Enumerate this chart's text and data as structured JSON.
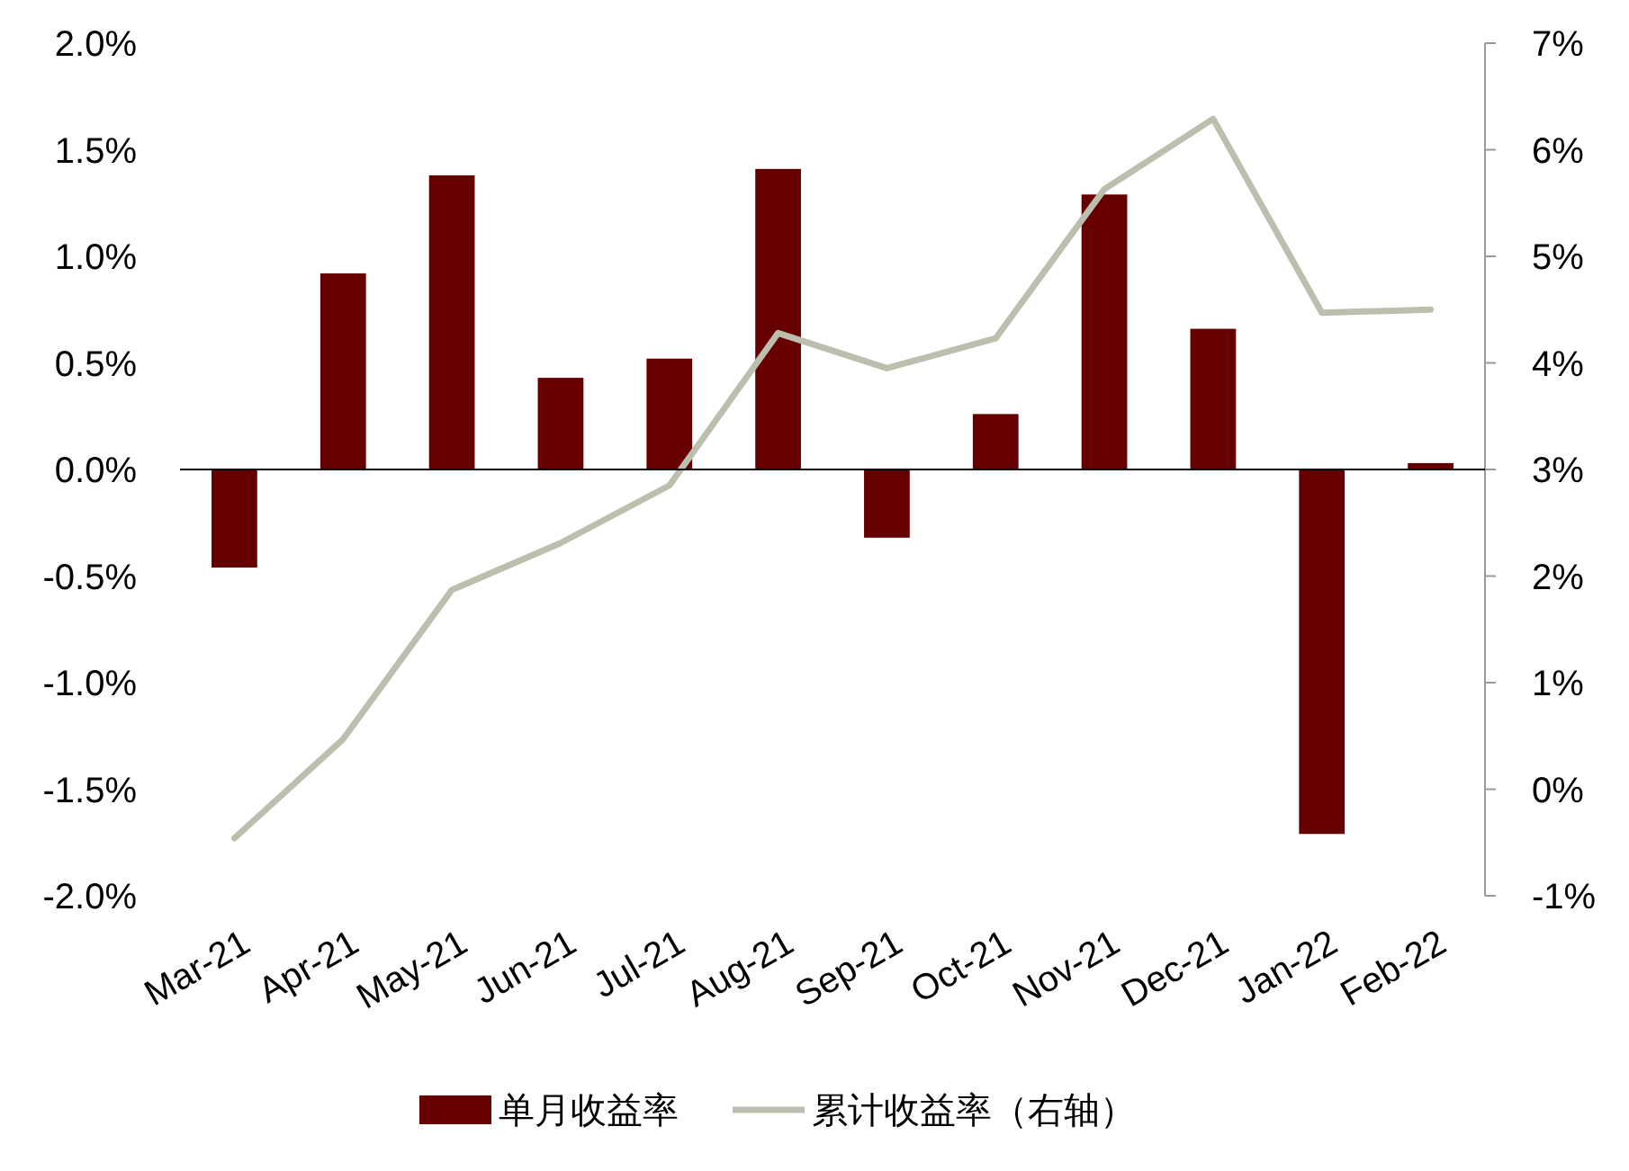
{
  "chart_data": {
    "type": "bar",
    "categories": [
      "Mar-21",
      "Apr-21",
      "May-21",
      "Jun-21",
      "Jul-21",
      "Aug-21",
      "Sep-21",
      "Oct-21",
      "Nov-21",
      "Dec-21",
      "Jan-22",
      "Feb-22"
    ],
    "series": [
      {
        "name": "单月收益率",
        "color": "#660000",
        "values": [
          -0.46,
          0.92,
          1.38,
          0.43,
          0.52,
          1.41,
          -0.32,
          0.26,
          1.29,
          0.66,
          -1.71,
          0.03
        ]
      },
      {
        "name": "累计收益率（右轴）",
        "type": "line",
        "axis": "y2",
        "color": "#bcbfae",
        "values": [
          -0.46,
          0.47,
          1.87,
          2.31,
          2.85,
          4.28,
          3.95,
          4.23,
          5.63,
          6.29,
          4.47,
          4.5
        ]
      }
    ],
    "ylim": [
      -2,
      2
    ],
    "yticks": [
      {
        "value": -2,
        "label": "-2.0%"
      },
      {
        "value": -1.5,
        "label": "-1.5%"
      },
      {
        "value": -1,
        "label": "-1.0%"
      },
      {
        "value": -0.5,
        "label": "-0.5%"
      },
      {
        "value": 0,
        "label": "0.0%"
      },
      {
        "value": 0.5,
        "label": "0.5%"
      },
      {
        "value": 1,
        "label": "1.0%"
      },
      {
        "value": 1.5,
        "label": "1.5%"
      },
      {
        "value": 2,
        "label": "2.0%"
      }
    ],
    "y2lim": [
      -1,
      7
    ],
    "y2ticks": [
      {
        "value": -1,
        "label": "-1%"
      },
      {
        "value": 0,
        "label": "0%"
      },
      {
        "value": 1,
        "label": "1%"
      },
      {
        "value": 2,
        "label": "2%"
      },
      {
        "value": 3,
        "label": "3%"
      },
      {
        "value": 4,
        "label": "4%"
      },
      {
        "value": 5,
        "label": "5%"
      },
      {
        "value": 6,
        "label": "6%"
      },
      {
        "value": 7,
        "label": "7%"
      }
    ],
    "legend": "bottom",
    "marker": "none",
    "line_style": "solid"
  }
}
